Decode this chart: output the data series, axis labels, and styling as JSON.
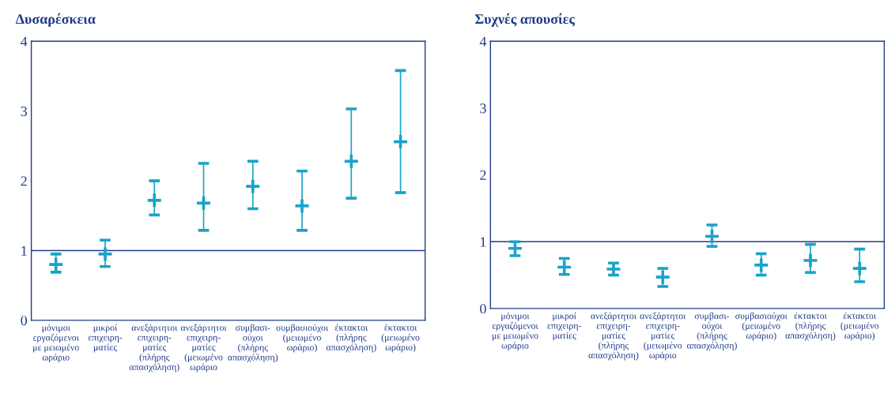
{
  "chart_data": [
    {
      "type": "scatter",
      "title": "Δυσαρέσκεια",
      "categories": [
        "μόνιμοι\nεργαζόμενοι\nμε μειωμένο\nωράριο",
        "μικροί\nεπιχειρη-\nματίες",
        "ανεξάρτητοι\nεπιχειρη-\nματίες\n(πλήρης\nαπασχόληση)",
        "ανεξάρτητοι\nεπιχειρη-\nματίες\n(μειωμένο\nωράριο",
        "συμβασι-\nούχοι\n(πλήρης\nαπασχόληση)",
        "συμβασιούχοι\n(μειωμένο\nωράριο)",
        "έκτακτοι\n(πλήρης\nαπασχόληση)",
        "έκτακτοι\n(μειωμένο\nωράριο)"
      ],
      "series": [
        {
          "color": "#1aa3c8",
          "values": [
            0.8,
            0.95,
            1.72,
            1.68,
            1.92,
            1.64,
            2.28,
            2.56
          ],
          "errors": [
            [
              0.69,
              0.95
            ],
            [
              0.77,
              1.15
            ],
            [
              1.51,
              2.0
            ],
            [
              1.29,
              2.25
            ],
            [
              1.6,
              2.28
            ],
            [
              1.29,
              2.14
            ],
            [
              1.75,
              3.03
            ],
            [
              1.83,
              3.58
            ]
          ]
        }
      ],
      "ylim": [
        0,
        4
      ],
      "yticks": [
        0,
        1,
        2,
        3,
        4
      ],
      "ref_lines": [
        {
          "axis": "y",
          "value": 1,
          "color": "#1f3c88"
        }
      ],
      "grid": false,
      "legend": false,
      "marker": "cross"
    },
    {
      "type": "scatter",
      "title": "Συχνές απουσίες",
      "categories": [
        "μόνιμοι\nεργαζόμενοι\nμε μειωμένο\nωράριο",
        "μικροί\nεπιχειρη-\nματίες",
        "ανεξάρτητοι\nεπιχειρη-\nματίες\n(πλήρης\nαπασχόληση)",
        "ανεξάρτητοι\nεπιχειρη-\nματίες\n(μειωμένο\nωράριο",
        "συμβασι-\nούχοι\n(πλήρης\nαπασχόληση)",
        "συμβασιούχοι\n(μειωμένο\nωράριο)",
        "έκτακτοι\n(πλήρης\nαπασχόληση)",
        "έκτακτοι\n(μειωμένο\nωράριο)"
      ],
      "series": [
        {
          "color": "#1aa3c8",
          "values": [
            0.9,
            0.62,
            0.59,
            0.47,
            1.08,
            0.65,
            0.72,
            0.6
          ],
          "errors": [
            [
              0.79,
              1.0
            ],
            [
              0.51,
              0.75
            ],
            [
              0.5,
              0.68
            ],
            [
              0.33,
              0.6
            ],
            [
              0.93,
              1.25
            ],
            [
              0.5,
              0.82
            ],
            [
              0.54,
              0.96
            ],
            [
              0.4,
              0.89
            ]
          ]
        }
      ],
      "ylim": [
        0,
        4
      ],
      "yticks": [
        0,
        1,
        2,
        3,
        4
      ],
      "ref_lines": [
        {
          "axis": "y",
          "value": 1,
          "color": "#1f3c88"
        }
      ],
      "grid": false,
      "legend": false,
      "marker": "cross"
    }
  ]
}
